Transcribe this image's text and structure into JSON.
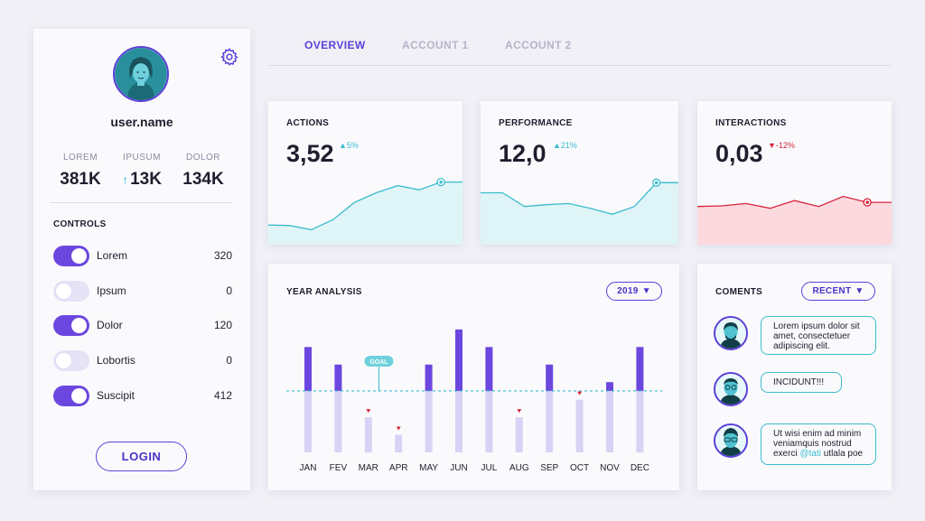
{
  "colors": {
    "accent": "#5b3fd9",
    "accent_light": "#d8d2f5",
    "teal": "#3bbccc",
    "teal_fill": "#e0f5f8",
    "red": "#d8243c",
    "red_fill": "#fbd9de",
    "background": "#f0f0f6"
  },
  "sidebar": {
    "settings_icon": "gear-icon",
    "username": "user.name",
    "stats": [
      {
        "label": "LOREM",
        "value": "381K"
      },
      {
        "label": "IPUSUM",
        "value": "13K",
        "arrow": "↑"
      },
      {
        "label": "DOLOR",
        "value": "134K"
      }
    ],
    "controls_title": "CONTROLS",
    "controls": [
      {
        "label": "Lorem",
        "value": "320",
        "on": true
      },
      {
        "label": "Ipsum",
        "value": "0",
        "on": false
      },
      {
        "label": "Dolor",
        "value": "120",
        "on": true
      },
      {
        "label": "Lobortis",
        "value": "0",
        "on": false
      },
      {
        "label": "Suscipit",
        "value": "412",
        "on": true
      }
    ],
    "login_label": "LOGIN"
  },
  "tabs": [
    {
      "label": "OVERVIEW",
      "active": true
    },
    {
      "label": "ACCOUNT 1",
      "active": false
    },
    {
      "label": "ACCOUNT 2",
      "active": false
    }
  ],
  "kpis": [
    {
      "title": "ACTIONS",
      "value": "3,52",
      "change": "▲5%",
      "direction": "up",
      "trend": [
        0.24,
        0.23,
        0.16,
        0.33,
        0.62,
        0.78,
        0.9,
        0.83,
        0.96,
        0.96
      ]
    },
    {
      "title": "PERFORMANCE",
      "value": "12,0",
      "change": "▲21%",
      "direction": "up",
      "trend": [
        0.78,
        0.78,
        0.55,
        0.58,
        0.6,
        0.52,
        0.42,
        0.55,
        0.95,
        0.95
      ]
    },
    {
      "title": "INTERACTIONS",
      "value": "0,03",
      "change": "▼-12%",
      "direction": "down",
      "trend": [
        0.55,
        0.56,
        0.6,
        0.52,
        0.65,
        0.55,
        0.72,
        0.62,
        0.62
      ]
    }
  ],
  "year_analysis": {
    "title": "YEAR ANALYSIS",
    "year_label": "2019",
    "goal_label": "GOAL",
    "goal": 70
  },
  "chart_data": {
    "type": "bar",
    "categories": [
      "JAN",
      "FEV",
      "MAR",
      "APR",
      "MAY",
      "JUN",
      "JUL",
      "AUG",
      "SEP",
      "OCT",
      "NOV",
      "DEC"
    ],
    "values": [
      120,
      100,
      40,
      20,
      100,
      140,
      120,
      40,
      100,
      60,
      80,
      120
    ],
    "goal": 70,
    "ylim": [
      0,
      145
    ],
    "below_goal_markers": [
      "MAR",
      "APR",
      "AUG",
      "OCT"
    ],
    "title": "YEAR ANALYSIS",
    "xlabel": "",
    "ylabel": "",
    "grid": false
  },
  "comments": {
    "title": "COMENTS",
    "sort_label": "RECENT",
    "items": [
      {
        "text": "Lorem ipsum dolor sit amet, consectetuer adipiscing elit."
      },
      {
        "text": "INCIDUNT!!!"
      },
      {
        "text_before": "Ut wisi enim ad minim veniamquis nostrud exerci ",
        "mention": "@tati",
        "text_after": " utlala poe"
      }
    ]
  }
}
